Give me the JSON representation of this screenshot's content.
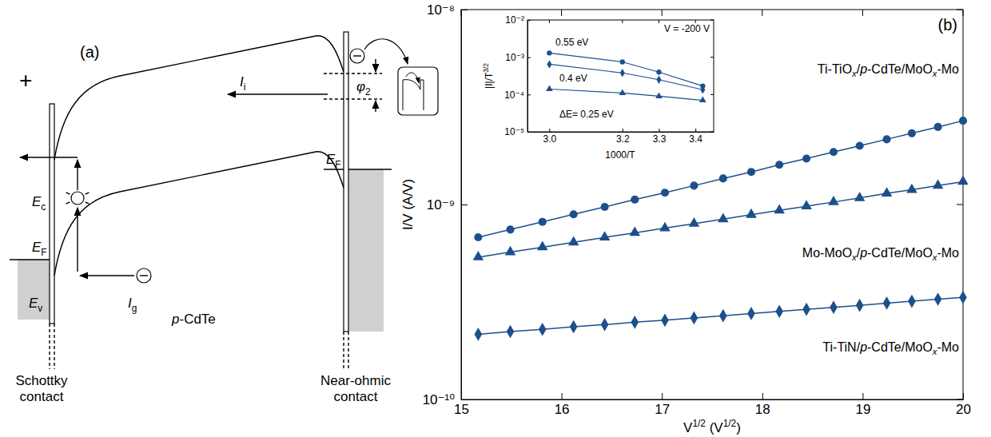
{
  "diagram": {
    "panel_label": "(a)",
    "labels": [
      "+",
      "Ii",
      "φ2",
      "EF",
      "Ec",
      "EF",
      "Ev",
      "Ig",
      "p-CdTe",
      "Schottky contact",
      "Near-ohmic contact"
    ]
  },
  "chart_data": [
    {
      "type": "line",
      "annotations": [
        "(b)"
      ],
      "x_label": "V1/2 (V1/2)",
      "y_label": "I/V (A/V)",
      "log": "y",
      "xlim": [
        15,
        20
      ],
      "ylim": [
        1e-10,
        1e-08
      ],
      "xticks": [
        15,
        16,
        17,
        18,
        19,
        20
      ],
      "yticks": [
        {
          "value": 1e-10,
          "label": "10⁻¹⁰"
        },
        {
          "value": 1e-09,
          "label": "10⁻⁹"
        },
        {
          "value": 1e-08,
          "label": "10⁻⁸"
        }
      ],
      "x": [
        15.17,
        15.49,
        15.81,
        16.12,
        16.43,
        16.73,
        17.03,
        17.32,
        17.61,
        17.89,
        18.17,
        18.44,
        18.71,
        18.97,
        19.24,
        19.49,
        19.75,
        20
      ],
      "series": [
        {
          "name": "Ti-TiOx/p-CdTe/MoOx-Mo",
          "color": "#1c4f8c",
          "marker": "circle",
          "line_style": "solid",
          "values": [
            6.79e-10,
            7.44e-10,
            8.15e-10,
            8.91e-10,
            9.72e-10,
            1.06e-09,
            1.15e-09,
            1.25e-09,
            1.36e-09,
            1.47e-09,
            1.6e-09,
            1.72e-09,
            1.86e-09,
            2e-09,
            2.16e-09,
            2.32e-09,
            2.5e-09,
            2.69e-09
          ]
        },
        {
          "name": "Mo-MoOx/p-CdTe/MoOx-Mo",
          "color": "#1c4f8c",
          "marker": "triangle",
          "line_style": "solid",
          "values": [
            5.37e-10,
            5.7e-10,
            6.04e-10,
            6.4e-10,
            6.78e-10,
            7.16e-10,
            7.57e-10,
            7.98e-10,
            8.42e-10,
            8.87e-10,
            9.34e-10,
            9.8e-10,
            1.03e-09,
            1.08e-09,
            1.14e-09,
            1.19e-09,
            1.25e-09,
            1.31e-09
          ]
        },
        {
          "name": "Ti-TiN/p-CdTe/MoOx-Mo",
          "color": "#1c4f8c",
          "marker": "diamond",
          "line_style": "solid",
          "values": [
            2.16e-10,
            2.23e-10,
            2.29e-10,
            2.36e-10,
            2.42e-10,
            2.49e-10,
            2.55e-10,
            2.62e-10,
            2.69e-10,
            2.76e-10,
            2.83e-10,
            2.9e-10,
            2.97e-10,
            3.04e-10,
            3.12e-10,
            3.19e-10,
            3.27e-10,
            3.34e-10
          ]
        }
      ]
    },
    {
      "type": "line",
      "annotations": [
        "V = -200 V",
        "0.55 eV",
        "0.4 eV",
        "ΔE= 0.25 eV"
      ],
      "x_label": "1000/T",
      "y_label": "|I|/T3/2",
      "log": "y",
      "xlim": [
        2.94,
        3.45
      ],
      "ylim": [
        1e-05,
        0.01
      ],
      "xticks": [
        {
          "value": 3,
          "label": "3.0"
        },
        3.2,
        3.3,
        3.4
      ],
      "yticks": [
        {
          "value": 1e-05,
          "label": "10⁻⁵"
        },
        {
          "value": 0.0001,
          "label": "10⁻⁴"
        },
        {
          "value": 0.001,
          "label": "10⁻³"
        },
        {
          "value": 0.01,
          "label": "10⁻²"
        }
      ],
      "x": [
        3.0,
        3.2,
        3.3,
        3.42
      ],
      "series": [
        {
          "color": "#1c4f8c",
          "marker": "circle",
          "line_style": "solid",
          "values": [
            0.0013,
            0.00075,
            0.0004,
            0.00017
          ]
        },
        {
          "color": "#1c4f8c",
          "marker": "diamond",
          "line_style": "solid",
          "values": [
            0.00065,
            0.00038,
            0.00025,
            0.000135
          ]
        },
        {
          "color": "#1c4f8c",
          "marker": "triangle",
          "line_style": "solid",
          "values": [
            0.00014,
            0.00011,
            9e-05,
            7e-05
          ]
        }
      ]
    }
  ]
}
